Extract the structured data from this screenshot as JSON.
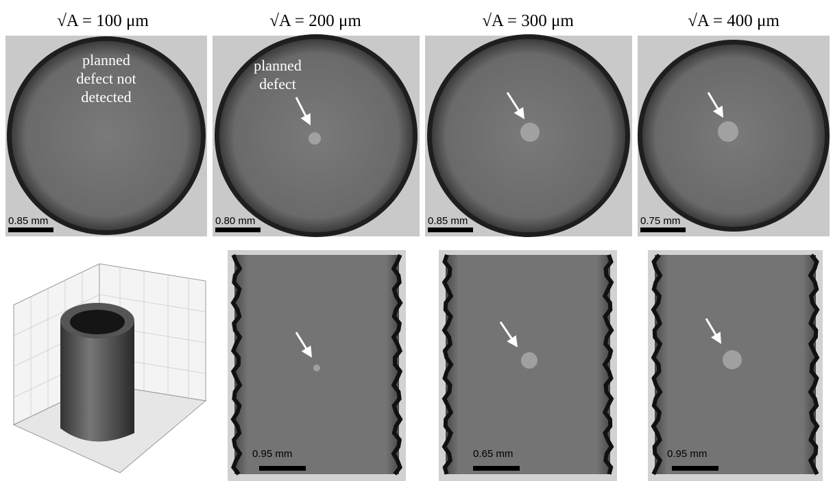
{
  "columns": [
    {
      "header": "√A = 100 μm",
      "top": {
        "annotation": [
          "planned",
          "defect not",
          "detected"
        ],
        "scale": "0.85 mm"
      }
    },
    {
      "header": "√A = 200 μm",
      "top": {
        "annotation": [
          "planned",
          "defect"
        ],
        "scale": "0.80 mm"
      },
      "bottom": {
        "scale": "0.95 mm"
      }
    },
    {
      "header": "√A = 300 μm",
      "top": {
        "scale": "0.85 mm"
      },
      "bottom": {
        "scale": "0.65 mm"
      }
    },
    {
      "header": "√A = 400 μm",
      "top": {
        "scale": "0.75 mm"
      },
      "bottom": {
        "scale": "0.95 mm"
      }
    }
  ]
}
